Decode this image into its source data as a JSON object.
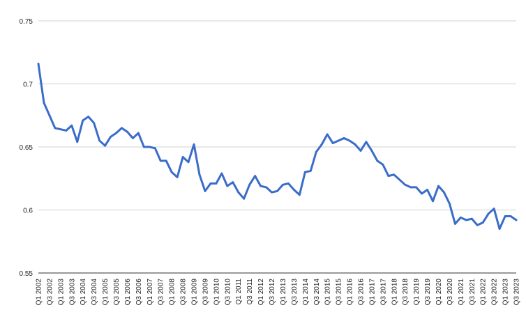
{
  "chart_data": {
    "type": "line",
    "title": "",
    "xlabel": "",
    "ylabel": "",
    "ylim": [
      0.55,
      0.75
    ],
    "yticks": [
      0.55,
      0.6,
      0.65,
      0.7,
      0.75
    ],
    "ytick_labels": [
      "0.55",
      "0.6",
      "0.65",
      "0.7",
      "0.75"
    ],
    "grid": true,
    "legend": "none",
    "categories": [
      "Q1 2002",
      "Q2 2002",
      "Q3 2002",
      "Q4 2002",
      "Q1 2003",
      "Q2 2003",
      "Q3 2003",
      "Q4 2003",
      "Q1 2004",
      "Q2 2004",
      "Q3 2004",
      "Q4 2004",
      "Q1 2005",
      "Q2 2005",
      "Q3 2005",
      "Q4 2005",
      "Q1 2006",
      "Q2 2006",
      "Q3 2006",
      "Q4 2006",
      "Q1 2007",
      "Q2 2007",
      "Q3 2007",
      "Q4 2007",
      "Q1 2008",
      "Q2 2008",
      "Q3 2008",
      "Q4 2008",
      "Q1 2009",
      "Q2 2009",
      "Q3 2009",
      "Q4 2009",
      "Q1 2010",
      "Q2 2010",
      "Q3 2010",
      "Q4 2010",
      "Q1 2011",
      "Q2 2011",
      "Q3 2011",
      "Q4 2011",
      "Q1 2012",
      "Q2 2012",
      "Q3 2012",
      "Q4 2012",
      "Q1 2013",
      "Q2 2013",
      "Q3 2013",
      "Q4 2013",
      "Q1 2014",
      "Q2 2014",
      "Q3 2014",
      "Q4 2014",
      "Q1 2015",
      "Q2 2015",
      "Q3 2015",
      "Q4 2015",
      "Q1 2016",
      "Q2 2016",
      "Q3 2016",
      "Q4 2016",
      "Q1 2017",
      "Q2 2017",
      "Q3 2017",
      "Q4 2017",
      "Q1 2018",
      "Q2 2018",
      "Q3 2018",
      "Q4 2018",
      "Q1 2019",
      "Q2 2019",
      "Q3 2019",
      "Q4 2019",
      "Q1 2020",
      "Q2 2020",
      "Q3 2020",
      "Q4 2020",
      "Q1 2021",
      "Q2 2021",
      "Q3 2021",
      "Q4 2021",
      "Q1 2022",
      "Q2 2022",
      "Q3 2022",
      "Q4 2022",
      "Q1 2023",
      "Q2 2023",
      "Q3 2023"
    ],
    "series": [
      {
        "color": "#3a6cc9",
        "values": [
          0.716,
          0.685,
          0.675,
          0.665,
          0.664,
          0.663,
          0.667,
          0.654,
          0.671,
          0.674,
          0.669,
          0.655,
          0.651,
          0.658,
          0.661,
          0.665,
          0.662,
          0.657,
          0.661,
          0.65,
          0.65,
          0.649,
          0.639,
          0.639,
          0.63,
          0.626,
          0.642,
          0.638,
          0.652,
          0.628,
          0.615,
          0.621,
          0.621,
          0.629,
          0.619,
          0.622,
          0.614,
          0.609,
          0.62,
          0.627,
          0.619,
          0.618,
          0.614,
          0.615,
          0.62,
          0.621,
          0.616,
          0.612,
          0.63,
          0.631,
          0.646,
          0.652,
          0.66,
          0.653,
          0.655,
          0.657,
          0.655,
          0.652,
          0.647,
          0.654,
          0.647,
          0.639,
          0.636,
          0.627,
          0.628,
          0.624,
          0.62,
          0.618,
          0.618,
          0.613,
          0.616,
          0.607,
          0.619,
          0.614,
          0.605,
          0.589,
          0.594,
          0.592,
          0.593,
          0.588,
          0.59,
          0.597,
          0.601,
          0.585,
          0.595,
          0.595,
          0.592
        ]
      }
    ]
  }
}
